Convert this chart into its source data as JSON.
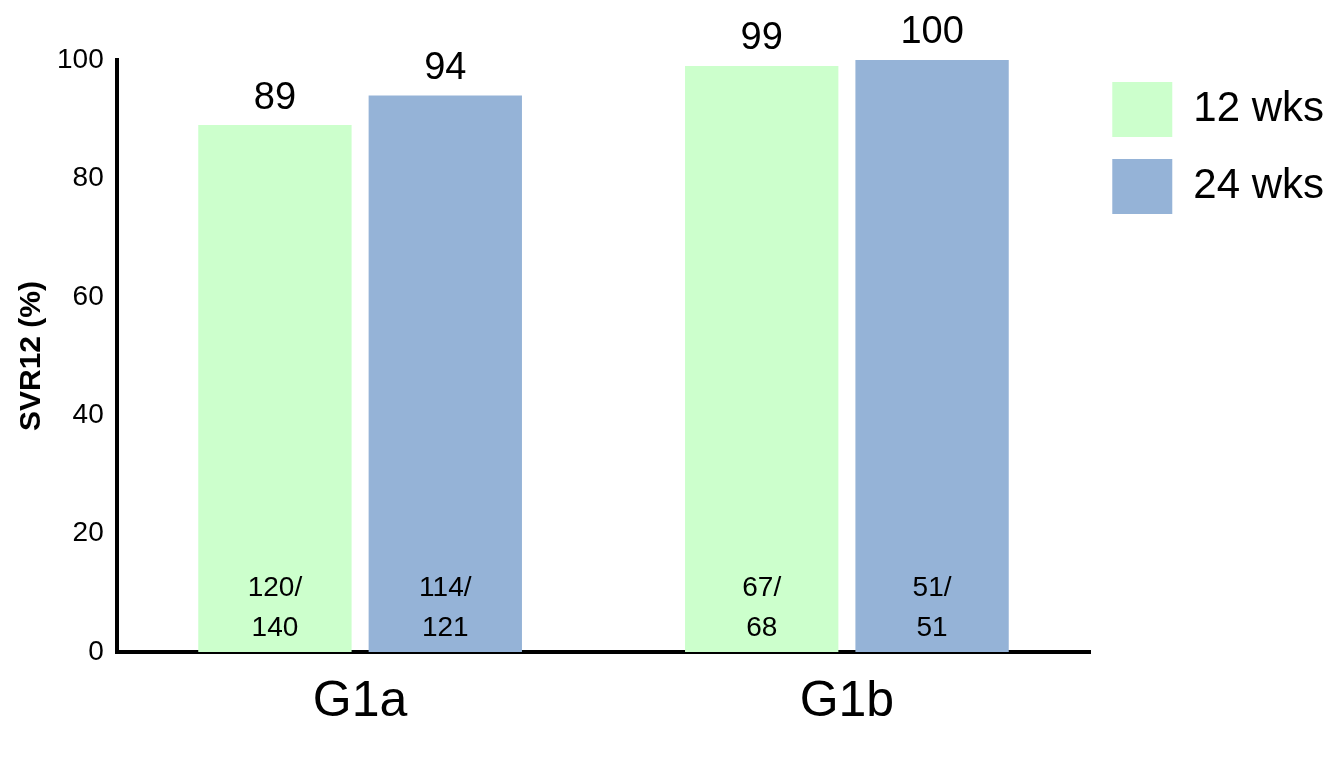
{
  "chart_data": {
    "type": "bar",
    "ylabel": "SVR12 (%)",
    "categories": [
      "G1a",
      "G1b"
    ],
    "series": [
      {
        "name": "12 wks",
        "color": "#ccffcc",
        "values": [
          89,
          99
        ]
      },
      {
        "name": "24 wks",
        "color": "#95b3d7",
        "values": [
          94,
          100
        ]
      }
    ],
    "ylim": [
      0,
      100
    ],
    "yticks": [
      0,
      20,
      40,
      60,
      80,
      100
    ],
    "grid": false,
    "legend": "top right",
    "data_labels": true,
    "annotations": [
      "120/140",
      "114/121",
      "67/68",
      "51/51"
    ]
  }
}
